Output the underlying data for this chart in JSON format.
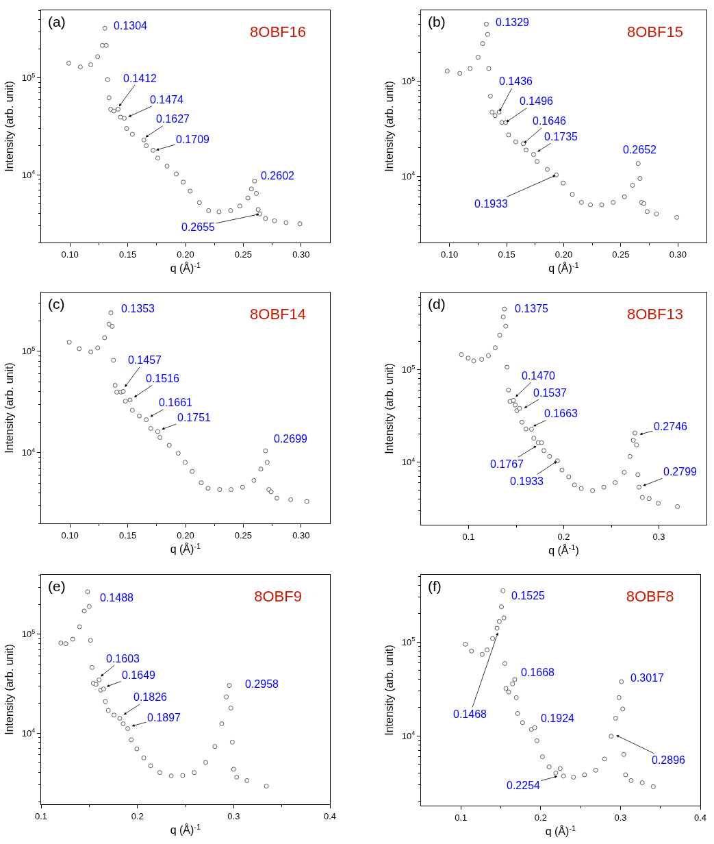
{
  "chart_data": [
    {
      "type": "scatter",
      "title": "8OBF16",
      "xlabel": "q (Å)$^{-1}$",
      "ylabel": "Intensity (arb. unit)",
      "log": "y",
      "marker": "circle",
      "xlim": [
        0.075,
        0.325
      ],
      "ylim": [
        2000,
        500000
      ],
      "xticks": [
        {
          "value": 0.1,
          "label": "0.10"
        },
        {
          "value": 0.125,
          "label": null
        },
        {
          "value": 0.15,
          "label": "0.15"
        },
        {
          "value": 0.175,
          "label": null
        },
        {
          "value": 0.2,
          "label": "0.20"
        },
        {
          "value": 0.225,
          "label": null
        },
        {
          "value": 0.25,
          "label": "0.25"
        },
        {
          "value": 0.275,
          "label": null
        },
        {
          "value": 0.3,
          "label": "0.30"
        }
      ],
      "yticks": [
        {
          "value": 2000,
          "label": null
        },
        {
          "value": 3000,
          "label": null
        },
        {
          "value": 4000,
          "label": null
        },
        {
          "value": 5000,
          "label": null
        },
        {
          "value": 6000,
          "label": null
        },
        {
          "value": 7000,
          "label": null
        },
        {
          "value": 8000,
          "label": null
        },
        {
          "value": 9000,
          "label": null
        },
        {
          "value": 10000,
          "label": "10$^{4}$"
        },
        {
          "value": 20000,
          "label": null
        },
        {
          "value": 30000,
          "label": null
        },
        {
          "value": 40000,
          "label": null
        },
        {
          "value": 50000,
          "label": null
        },
        {
          "value": 60000,
          "label": null
        },
        {
          "value": 70000,
          "label": null
        },
        {
          "value": 80000,
          "label": null
        },
        {
          "value": 90000,
          "label": null
        },
        {
          "value": 100000,
          "label": "10$^{5}$"
        },
        {
          "value": 200000,
          "label": null
        },
        {
          "value": 300000,
          "label": null
        },
        {
          "value": 400000,
          "label": null
        },
        {
          "value": 500000,
          "label": null
        }
      ],
      "x": [
        0.099,
        0.109,
        0.118,
        0.124,
        0.128,
        0.1302,
        0.1314,
        0.1326,
        0.1338,
        0.1352,
        0.138,
        0.1417,
        0.1437,
        0.147,
        0.149,
        0.154,
        0.164,
        0.166,
        0.172,
        0.176,
        0.184,
        0.192,
        0.198,
        0.204,
        0.212,
        0.22,
        0.229,
        0.239,
        0.247,
        0.254,
        0.257,
        0.2597,
        0.2613,
        0.2629,
        0.2643,
        0.2692,
        0.277,
        0.287,
        0.299
      ],
      "series": [
        {
          "color": "#333333",
          "values": [
            142000,
            130000,
            137000,
            166000,
            217000,
            326000,
            217000,
            96000,
            62400,
            47600,
            45600,
            47600,
            39400,
            38400,
            30100,
            26200,
            22900,
            20000,
            17900,
            14900,
            12300,
            10200,
            8400,
            6780,
            5170,
            4270,
            4160,
            4270,
            4760,
            5760,
            7150,
            8630,
            6420,
            4380,
            3940,
            3530,
            3350,
            3210,
            3120
          ]
        }
      ],
      "annotations": [
        "(a)",
        {
          "text": "0.1304",
          "x": 0.1302,
          "y": 326000
        },
        {
          "text": "0.1412",
          "x": 0.1421,
          "y": 50200
        },
        {
          "text": "0.1474",
          "x": 0.15,
          "y": 39400
        },
        {
          "text": "0.1627",
          "x": 0.1649,
          "y": 24200
        },
        {
          "text": "0.1709",
          "x": 0.1739,
          "y": 17900
        },
        {
          "text": "0.2602",
          "x": 0.2597,
          "y": 8630
        },
        {
          "text": "0.2655",
          "x": 0.2643,
          "y": 3940
        }
      ]
    },
    {
      "type": "scatter",
      "title": "8OBF15",
      "xlabel": "q (Å)$^{-1}$",
      "ylabel": "Intensity (arb. unit)",
      "log": "y",
      "marker": "circle",
      "xlim": [
        0.075,
        0.325
      ],
      "ylim": [
        2000,
        560000
      ],
      "xticks": [
        {
          "value": 0.1,
          "label": "0.10"
        },
        {
          "value": 0.125,
          "label": null
        },
        {
          "value": 0.15,
          "label": "0.15"
        },
        {
          "value": 0.175,
          "label": null
        },
        {
          "value": 0.2,
          "label": "0.20"
        },
        {
          "value": 0.225,
          "label": null
        },
        {
          "value": 0.25,
          "label": "0.25"
        },
        {
          "value": 0.275,
          "label": null
        },
        {
          "value": 0.3,
          "label": "0.30"
        }
      ],
      "yticks": [
        {
          "value": 2000,
          "label": null
        },
        {
          "value": 3000,
          "label": null
        },
        {
          "value": 4000,
          "label": null
        },
        {
          "value": 5000,
          "label": null
        },
        {
          "value": 6000,
          "label": null
        },
        {
          "value": 7000,
          "label": null
        },
        {
          "value": 8000,
          "label": null
        },
        {
          "value": 9000,
          "label": null
        },
        {
          "value": 10000,
          "label": "10$^{4}$"
        },
        {
          "value": 20000,
          "label": null
        },
        {
          "value": 30000,
          "label": null
        },
        {
          "value": 40000,
          "label": null
        },
        {
          "value": 50000,
          "label": null
        },
        {
          "value": 60000,
          "label": null
        },
        {
          "value": 70000,
          "label": null
        },
        {
          "value": 80000,
          "label": null
        },
        {
          "value": 90000,
          "label": null
        },
        {
          "value": 100000,
          "label": "10$^{5}$"
        },
        {
          "value": 200000,
          "label": null
        },
        {
          "value": 300000,
          "label": null
        },
        {
          "value": 400000,
          "label": null
        },
        {
          "value": 500000,
          "label": null
        }
      ],
      "x": [
        0.098,
        0.109,
        0.118,
        0.125,
        0.129,
        0.1322,
        0.1334,
        0.1344,
        0.1358,
        0.1372,
        0.1398,
        0.1434,
        0.1458,
        0.1492,
        0.1517,
        0.158,
        0.1647,
        0.167,
        0.1736,
        0.1766,
        0.1856,
        0.1935,
        0.1995,
        0.2075,
        0.2155,
        0.2234,
        0.2333,
        0.2433,
        0.2532,
        0.2602,
        0.2652,
        0.2668,
        0.2682,
        0.2702,
        0.2731,
        0.2811,
        0.299
      ],
      "series": [
        {
          "color": "#333333",
          "values": [
            128000,
            121000,
            136000,
            179000,
            250000,
            400000,
            312000,
            136000,
            69700,
            47300,
            43500,
            47300,
            36800,
            36800,
            27200,
            23000,
            22000,
            18900,
            16900,
            14300,
            11800,
            10300,
            8470,
            6420,
            5290,
            5000,
            5000,
            5290,
            6070,
            8010,
            13600,
            9460,
            5290,
            5140,
            4240,
            4000,
            3680
          ]
        }
      ],
      "annotations": [
        "(b)",
        {
          "text": "0.1329",
          "x": 0.1322,
          "y": 400000
        },
        {
          "text": "0.1436",
          "x": 0.1434,
          "y": 47300
        },
        {
          "text": "0.1496",
          "x": 0.1492,
          "y": 36800
        },
        {
          "text": "0.1646",
          "x": 0.1647,
          "y": 22000
        },
        {
          "text": "0.1735",
          "x": 0.1766,
          "y": 17900
        },
        {
          "text": "0.1933",
          "x": 0.1935,
          "y": 10300
        },
        {
          "text": "0.2652",
          "x": 0.2652,
          "y": 13600
        }
      ]
    },
    {
      "type": "scatter",
      "title": "8OBF14",
      "xlabel": "q (Å)$^{-1}$",
      "ylabel": "Intensity (arb. unit)",
      "log": "y",
      "marker": "circle",
      "xlim": [
        0.075,
        0.325
      ],
      "ylim": [
        2000,
        380000
      ],
      "xticks": [
        {
          "value": 0.1,
          "label": "0.10"
        },
        {
          "value": 0.125,
          "label": null
        },
        {
          "value": 0.15,
          "label": "0.15"
        },
        {
          "value": 0.175,
          "label": null
        },
        {
          "value": 0.2,
          "label": "0.20"
        },
        {
          "value": 0.225,
          "label": null
        },
        {
          "value": 0.25,
          "label": "0.25"
        },
        {
          "value": 0.275,
          "label": null
        },
        {
          "value": 0.3,
          "label": "0.30"
        }
      ],
      "yticks": [
        {
          "value": 2000,
          "label": null
        },
        {
          "value": 3000,
          "label": null
        },
        {
          "value": 4000,
          "label": null
        },
        {
          "value": 5000,
          "label": null
        },
        {
          "value": 6000,
          "label": null
        },
        {
          "value": 7000,
          "label": null
        },
        {
          "value": 8000,
          "label": null
        },
        {
          "value": 9000,
          "label": null
        },
        {
          "value": 10000,
          "label": "10$^{4}$"
        },
        {
          "value": 20000,
          "label": null
        },
        {
          "value": 30000,
          "label": null
        },
        {
          "value": 40000,
          "label": null
        },
        {
          "value": 50000,
          "label": null
        },
        {
          "value": 60000,
          "label": null
        },
        {
          "value": 70000,
          "label": null
        },
        {
          "value": 80000,
          "label": null
        },
        {
          "value": 90000,
          "label": null
        },
        {
          "value": 100000,
          "label": "10$^{5}$"
        },
        {
          "value": 200000,
          "label": null
        },
        {
          "value": 300000,
          "label": null
        }
      ],
      "x": [
        0.0994,
        0.108,
        0.118,
        0.124,
        0.13,
        0.1338,
        0.1354,
        0.1365,
        0.1377,
        0.1391,
        0.1405,
        0.1441,
        0.1461,
        0.148,
        0.152,
        0.154,
        0.16,
        0.166,
        0.17,
        0.1759,
        0.1779,
        0.1859,
        0.1937,
        0.1997,
        0.2057,
        0.2136,
        0.2195,
        0.2295,
        0.2394,
        0.2494,
        0.2592,
        0.2652,
        0.2692,
        0.2707,
        0.2721,
        0.2741,
        0.2791,
        0.291,
        0.305
      ],
      "series": [
        {
          "color": "#333333",
          "values": [
            123000,
            106000,
            98500,
            108000,
            136000,
            185000,
            240000,
            176000,
            81500,
            46100,
            39500,
            39500,
            40100,
            32200,
            33000,
            26200,
            23000,
            21100,
            17300,
            16100,
            14100,
            11800,
            9850,
            8010,
            6520,
            5040,
            4440,
            4320,
            4320,
            4550,
            5310,
            6870,
            10400,
            8010,
            4320,
            4100,
            3550,
            3430,
            3300
          ]
        }
      ],
      "annotations": [
        "(c)",
        {
          "text": "0.1353",
          "x": 0.1354,
          "y": 240000
        },
        {
          "text": "0.1457",
          "x": 0.1471,
          "y": 43800
        },
        {
          "text": "0.1516",
          "x": 0.155,
          "y": 34800
        },
        {
          "text": "0.1661",
          "x": 0.1689,
          "y": 22400
        },
        {
          "text": "0.1751",
          "x": 0.1789,
          "y": 16900
        },
        {
          "text": "0.2699",
          "x": 0.2692,
          "y": 10400
        }
      ]
    },
    {
      "type": "scatter",
      "title": "8OBF13",
      "xlabel": "q (Å$^{-1}$)",
      "ylabel": "Intensity (arb. unit)",
      "log": "y",
      "marker": "circle",
      "xlim": [
        0.05,
        0.35
      ],
      "ylim": [
        2100,
        680000
      ],
      "xticks": [
        0.1,
        {
          "value": 0.15,
          "label": null
        },
        0.2,
        {
          "value": 0.25,
          "label": null
        },
        0.3
      ],
      "yticks": [
        {
          "value": 3000,
          "label": null
        },
        {
          "value": 4000,
          "label": null
        },
        {
          "value": 5000,
          "label": null
        },
        {
          "value": 6000,
          "label": null
        },
        {
          "value": 7000,
          "label": null
        },
        {
          "value": 8000,
          "label": null
        },
        {
          "value": 9000,
          "label": null
        },
        {
          "value": 10000,
          "label": "10$^{4}$"
        },
        {
          "value": 20000,
          "label": null
        },
        {
          "value": 30000,
          "label": null
        },
        {
          "value": 40000,
          "label": null
        },
        {
          "value": 50000,
          "label": null
        },
        {
          "value": 60000,
          "label": null
        },
        {
          "value": 70000,
          "label": null
        },
        {
          "value": 80000,
          "label": null
        },
        {
          "value": 90000,
          "label": null
        },
        {
          "value": 100000,
          "label": "10$^{5}$"
        },
        {
          "value": 200000,
          "label": null
        },
        {
          "value": 300000,
          "label": null
        },
        {
          "value": 400000,
          "label": null
        },
        {
          "value": 500000,
          "label": null
        },
        {
          "value": 600000,
          "label": null
        }
      ],
      "x": [
        0.0924,
        0.0995,
        0.1055,
        0.1138,
        0.1209,
        0.128,
        0.1328,
        0.1364,
        0.1376,
        0.139,
        0.1404,
        0.1419,
        0.1435,
        0.1471,
        0.149,
        0.1507,
        0.1537,
        0.1561,
        0.1602,
        0.1661,
        0.1685,
        0.1732,
        0.1768,
        0.1792,
        0.1851,
        0.1934,
        0.1982,
        0.2053,
        0.2113,
        0.2184,
        0.2303,
        0.2422,
        0.2541,
        0.2636,
        0.2696,
        0.2731,
        0.2748,
        0.2765,
        0.2779,
        0.2791,
        0.2826,
        0.2898,
        0.2993,
        0.3195
      ],
      "series": [
        {
          "color": "#333333",
          "values": [
            145000,
            133000,
            124000,
            129000,
            141000,
            172000,
            235000,
            370000,
            451000,
            294000,
            106000,
            60000,
            45100,
            46400,
            41400,
            35900,
            38000,
            27000,
            22800,
            22600,
            18100,
            16200,
            16200,
            13300,
            11500,
            10300,
            8200,
            6920,
            5660,
            5200,
            4910,
            5350,
            6000,
            7740,
            11500,
            17200,
            20600,
            15300,
            7310,
            5350,
            4140,
            4030,
            3600,
            3300
          ]
        }
      ],
      "annotations": [
        "(d)",
        {
          "text": "0.1375",
          "x": 0.1376,
          "y": 451000
        },
        {
          "text": "0.1470",
          "x": 0.1488,
          "y": 50000
        },
        {
          "text": "0.1537",
          "x": 0.1578,
          "y": 38000
        },
        {
          "text": "0.1663",
          "x": 0.1673,
          "y": 24200
        },
        {
          "text": "0.1767",
          "x": 0.172,
          "y": 15100
        },
        {
          "text": "0.1933",
          "x": 0.1934,
          "y": 10300
        },
        {
          "text": "0.2746",
          "x": 0.2791,
          "y": 19800
        },
        {
          "text": "0.2799",
          "x": 0.2826,
          "y": 5510
        }
      ]
    },
    {
      "type": "scatter",
      "title": "8OBF9",
      "xlabel": "q (Å)$^{-1}$",
      "ylabel": "Intensity (arb. unit)",
      "log": "y",
      "marker": "circle",
      "xlim": [
        0.1,
        0.4
      ],
      "ylim": [
        1900,
        400000
      ],
      "xticks": [
        0.1,
        {
          "value": 0.15,
          "label": null
        },
        0.2,
        {
          "value": 0.25,
          "label": null
        },
        0.3,
        {
          "value": 0.35,
          "label": null
        },
        0.4
      ],
      "yticks": [
        {
          "value": 2000,
          "label": null
        },
        {
          "value": 3000,
          "label": null
        },
        {
          "value": 4000,
          "label": null
        },
        {
          "value": 5000,
          "label": null
        },
        {
          "value": 6000,
          "label": null
        },
        {
          "value": 7000,
          "label": null
        },
        {
          "value": 8000,
          "label": null
        },
        {
          "value": 9000,
          "label": null
        },
        {
          "value": 10000,
          "label": "10$^{4}$"
        },
        {
          "value": 20000,
          "label": null
        },
        {
          "value": 30000,
          "label": null
        },
        {
          "value": 40000,
          "label": null
        },
        {
          "value": 50000,
          "label": null
        },
        {
          "value": 60000,
          "label": null
        },
        {
          "value": 70000,
          "label": null
        },
        {
          "value": 80000,
          "label": null
        },
        {
          "value": 90000,
          "label": null
        },
        {
          "value": 100000,
          "label": "10$^{5}$"
        },
        {
          "value": 200000,
          "label": null
        },
        {
          "value": 300000,
          "label": null
        },
        {
          "value": 400000,
          "label": null
        }
      ],
      "x": [
        0.1205,
        0.1257,
        0.1329,
        0.14,
        0.1448,
        0.1483,
        0.15,
        0.1514,
        0.1529,
        0.1543,
        0.1571,
        0.1602,
        0.1619,
        0.165,
        0.1667,
        0.1698,
        0.1757,
        0.1817,
        0.1852,
        0.19,
        0.1936,
        0.1995,
        0.2067,
        0.2138,
        0.2233,
        0.2352,
        0.2471,
        0.259,
        0.271,
        0.2805,
        0.2876,
        0.2924,
        0.2955,
        0.2971,
        0.2986,
        0.3,
        0.3031,
        0.3138,
        0.334
      ],
      "series": [
        {
          "color": "#333333",
          "values": [
            81500,
            80200,
            89100,
            119000,
            172000,
            269000,
            191000,
            86700,
            46100,
            31900,
            31100,
            34500,
            27200,
            27900,
            20900,
            16900,
            15200,
            14100,
            12400,
            11100,
            8530,
            6920,
            5600,
            4660,
            3980,
            3680,
            3720,
            3980,
            5050,
            7300,
            12400,
            23200,
            30300,
            17900,
            8090,
            4300,
            3580,
            3300,
            2900
          ]
        }
      ],
      "annotations": [
        "(e)",
        {
          "text": "0.1488",
          "x": 0.1483,
          "y": 269000
        },
        {
          "text": "0.1603",
          "x": 0.1614,
          "y": 37000
        },
        {
          "text": "0.1649",
          "x": 0.1674,
          "y": 29400
        },
        {
          "text": "0.1826",
          "x": 0.1852,
          "y": 15200
        },
        {
          "text": "0.1897",
          "x": 0.1936,
          "y": 11700
        },
        {
          "text": "0.2958",
          "x": 0.2955,
          "y": 30300
        }
      ]
    },
    {
      "type": "scatter",
      "title": "8OBF8",
      "xlabel": "q (Å)$^{-1}$",
      "ylabel": "Intensity (arb. unit)",
      "log": "y",
      "marker": "circle",
      "xlim": [
        0.05,
        0.4
      ],
      "ylim": [
        1800,
        520000
      ],
      "xticks": [
        0.1,
        {
          "value": 0.15,
          "label": null
        },
        0.2,
        {
          "value": 0.25,
          "label": null
        },
        0.3,
        {
          "value": 0.35,
          "label": null
        },
        0.4
      ],
      "yticks": [
        {
          "value": 2000,
          "label": null
        },
        {
          "value": 3000,
          "label": null
        },
        {
          "value": 4000,
          "label": null
        },
        {
          "value": 5000,
          "label": null
        },
        {
          "value": 6000,
          "label": null
        },
        {
          "value": 7000,
          "label": null
        },
        {
          "value": 8000,
          "label": null
        },
        {
          "value": 9000,
          "label": null
        },
        {
          "value": 10000,
          "label": "10$^{4}$"
        },
        {
          "value": 20000,
          "label": null
        },
        {
          "value": 30000,
          "label": null
        },
        {
          "value": 40000,
          "label": null
        },
        {
          "value": 50000,
          "label": null
        },
        {
          "value": 60000,
          "label": null
        },
        {
          "value": 70000,
          "label": null
        },
        {
          "value": 80000,
          "label": null
        },
        {
          "value": 90000,
          "label": null
        },
        {
          "value": 100000,
          "label": "10$^{5}$"
        },
        {
          "value": 200000,
          "label": null
        },
        {
          "value": 300000,
          "label": null
        },
        {
          "value": 400000,
          "label": null
        },
        {
          "value": 500000,
          "label": null
        }
      ],
      "x": [
        0.1056,
        0.1133,
        0.1267,
        0.1328,
        0.1397,
        0.1453,
        0.1481,
        0.1508,
        0.1528,
        0.1539,
        0.155,
        0.1564,
        0.16,
        0.1647,
        0.1675,
        0.1694,
        0.1711,
        0.1772,
        0.1883,
        0.1925,
        0.1953,
        0.2022,
        0.2106,
        0.2189,
        0.2244,
        0.2286,
        0.2411,
        0.255,
        0.2689,
        0.28,
        0.2883,
        0.2939,
        0.2981,
        0.3011,
        0.3028,
        0.3042,
        0.3064,
        0.3133,
        0.3272,
        0.3411
      ],
      "series": [
        {
          "color": "#333333",
          "values": [
            94600,
            80000,
            73600,
            82200,
            109000,
            140000,
            165000,
            237000,
            351000,
            180000,
            58900,
            31900,
            29300,
            35700,
            39800,
            25500,
            17300,
            13800,
            11700,
            12200,
            8850,
            5980,
            4660,
            4010,
            4480,
            3720,
            3620,
            3840,
            4290,
            5660,
            9890,
            15400,
            25500,
            37700,
            19300,
            6320,
            3840,
            3330,
            3160,
            2870
          ]
        }
      ],
      "annotations": [
        "(f)",
        {
          "text": "0.1525",
          "x": 0.1528,
          "y": 351000
        },
        {
          "text": "0.1468",
          "x": 0.1467,
          "y": 128000
        },
        {
          "text": "0.1668",
          "x": 0.1675,
          "y": 39800
        },
        {
          "text": "0.1924",
          "x": 0.1925,
          "y": 12200
        },
        {
          "text": "0.2254",
          "x": 0.2217,
          "y": 3720
        },
        {
          "text": "0.3017",
          "x": 0.3011,
          "y": 37700
        },
        {
          "text": "0.2896",
          "x": 0.2939,
          "y": 10200
        }
      ]
    }
  ]
}
